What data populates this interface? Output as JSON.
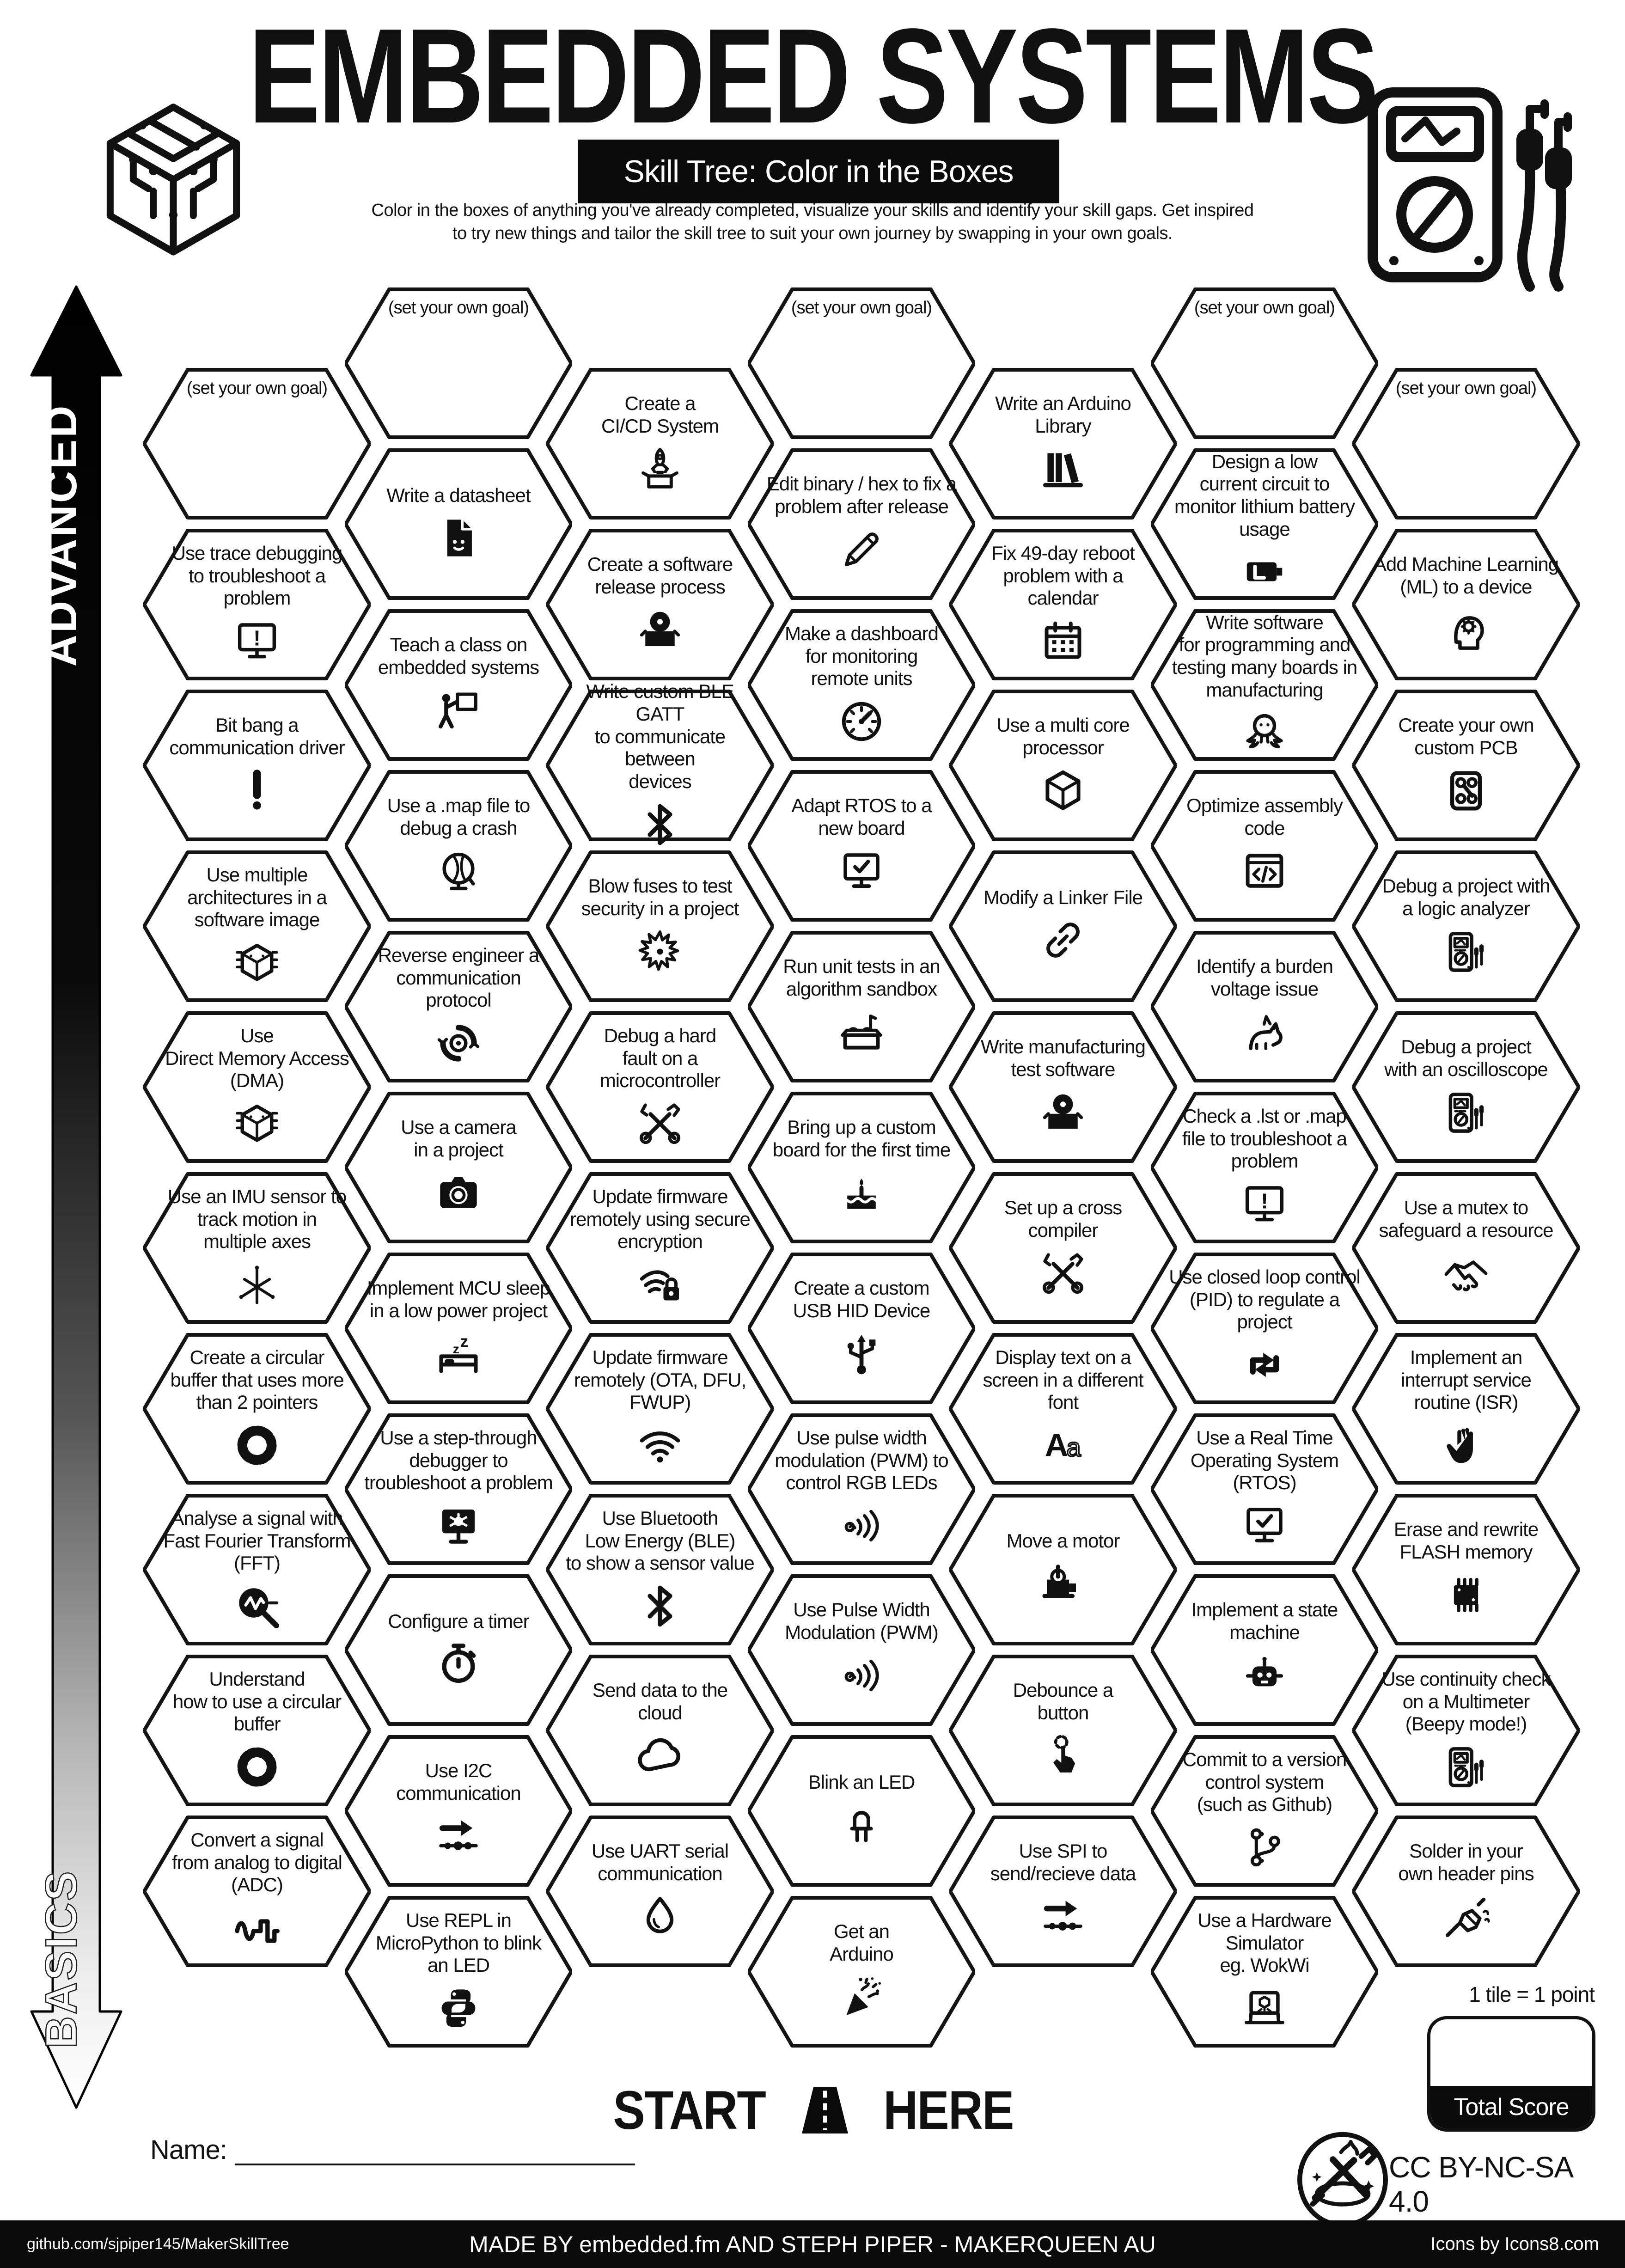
{
  "colors": {
    "ink": "#111111",
    "paper": "#ffffff",
    "bar": "#0b0b0b"
  },
  "header": {
    "title": "EMBEDDED SYSTEMS",
    "subtitle": "Skill Tree: Color in the Boxes",
    "description_line1": "Color in the boxes of anything you've already completed, visualize your skills and identify your skill gaps.  Get inspired",
    "description_line2": "to try new things and tailor the skill tree to suit your own journey by swapping in your own goals."
  },
  "axis": {
    "top_label": "ADVANCED",
    "bottom_label": "BASICS"
  },
  "goal_label": "(set your own goal)",
  "hexes": [
    {
      "col": 0,
      "row": 0,
      "goal": true,
      "label": "(set your own goal)",
      "icon": "none"
    },
    {
      "col": 0,
      "row": 1,
      "label": "Use trace debugging\nto troubleshoot a\nproblem",
      "icon": "monitor-exclamation"
    },
    {
      "col": 0,
      "row": 2,
      "label": "Bit bang a\ncommunication driver",
      "icon": "exclamation"
    },
    {
      "col": 0,
      "row": 3,
      "label": "Use multiple\narchitectures in a\nsoftware image",
      "icon": "circuit-cube"
    },
    {
      "col": 0,
      "row": 4,
      "label": "Use\nDirect Memory Access\n(DMA)",
      "icon": "memory-cube"
    },
    {
      "col": 0,
      "row": 5,
      "label": "Use an IMU sensor to\ntrack motion in\nmultiple axes",
      "icon": "axes-3d"
    },
    {
      "col": 0,
      "row": 6,
      "label": "Create a circular\nbuffer that uses more\nthan 2 pointers",
      "icon": "ring-buffer"
    },
    {
      "col": 0,
      "row": 7,
      "label": "Analyse a signal with\nFast Fourier Transform\n(FFT)",
      "icon": "magnifier-wave"
    },
    {
      "col": 0,
      "row": 8,
      "label": "Understand\nhow to use a circular\nbuffer",
      "icon": "ring-buffer"
    },
    {
      "col": 0,
      "row": 9,
      "label": "Convert a signal\nfrom analog to digital\n(ADC)",
      "icon": "adc-wave"
    },
    {
      "col": 1,
      "row": 0,
      "goal": true,
      "label": "(set your own goal)",
      "icon": "none"
    },
    {
      "col": 1,
      "row": 1,
      "label": "Write a datasheet",
      "icon": "datasheet-document"
    },
    {
      "col": 1,
      "row": 2,
      "label": "Teach a class on\nembedded systems",
      "icon": "presenter"
    },
    {
      "col": 1,
      "row": 3,
      "label": "Use a .map file to\ndebug a crash",
      "icon": "desk-globe"
    },
    {
      "col": 1,
      "row": 4,
      "label": "Reverse engineer a\ncommunication protocol",
      "icon": "gear-loop"
    },
    {
      "col": 1,
      "row": 5,
      "label": "Use a camera\nin a project",
      "icon": "camera"
    },
    {
      "col": 1,
      "row": 6,
      "label": "Implement MCU sleep\nin a low power project",
      "icon": "sleep-bed"
    },
    {
      "col": 1,
      "row": 7,
      "label": "Use a step-through\ndebugger to\ntroubleshoot a problem",
      "icon": "monitor-bug"
    },
    {
      "col": 1,
      "row": 8,
      "label": "Configure a timer",
      "icon": "stopwatch"
    },
    {
      "col": 1,
      "row": 9,
      "label": "Use I2C\ncommunication",
      "icon": "bus-arrow"
    },
    {
      "col": 1,
      "row": 10,
      "label": "Use REPL in\nMicroPython to blink\nan LED",
      "icon": "python"
    },
    {
      "col": 2,
      "row": 0,
      "label": "Create a\nCI/CD System",
      "icon": "rocket-box"
    },
    {
      "col": 2,
      "row": 1,
      "label": "Create a software\nrelease process",
      "icon": "box-cd"
    },
    {
      "col": 2,
      "row": 2,
      "label": "Write custom BLE GATT\nto communicate between\ndevices",
      "icon": "bluetooth"
    },
    {
      "col": 2,
      "row": 3,
      "label": "Blow fuses to test\nsecurity in a project",
      "icon": "explosion"
    },
    {
      "col": 2,
      "row": 4,
      "label": "Debug a hard\nfault on a\nmicrocontroller",
      "icon": "crossed-tools"
    },
    {
      "col": 2,
      "row": 5,
      "label": "Update firmware\nremotely using secure\nencryption",
      "icon": "wifi-lock"
    },
    {
      "col": 2,
      "row": 6,
      "label": "Update firmware\nremotely (OTA, DFU,\nFWUP)",
      "icon": "wifi"
    },
    {
      "col": 2,
      "row": 7,
      "label": "Use Bluetooth\nLow Energy (BLE)\nto show a sensor value",
      "icon": "bluetooth"
    },
    {
      "col": 2,
      "row": 8,
      "label": "Send data to the\ncloud",
      "icon": "cloud"
    },
    {
      "col": 2,
      "row": 9,
      "label": "Use UART serial\ncommunication",
      "icon": "water-drop"
    },
    {
      "col": 3,
      "row": 0,
      "goal": true,
      "label": "(set your own goal)",
      "icon": "none"
    },
    {
      "col": 3,
      "row": 1,
      "label": "Edit binary / hex to fix a\nproblem after release",
      "icon": "pencil"
    },
    {
      "col": 3,
      "row": 2,
      "label": "Make a dashboard\nfor monitoring\nremote units",
      "icon": "gauge"
    },
    {
      "col": 3,
      "row": 3,
      "label": "Adapt RTOS to a\nnew board",
      "icon": "monitor-check"
    },
    {
      "col": 3,
      "row": 4,
      "label": "Run unit tests in an\nalgorithm sandbox",
      "icon": "sandbox"
    },
    {
      "col": 3,
      "row": 5,
      "label": "Bring up a custom\nboard for the first time",
      "icon": "cake"
    },
    {
      "col": 3,
      "row": 6,
      "label": "Create a custom\nUSB HID Device",
      "icon": "usb"
    },
    {
      "col": 3,
      "row": 7,
      "label": "Use pulse width\nmodulation (PWM) to\ncontrol RGB LEDs",
      "icon": "pwm-waves"
    },
    {
      "col": 3,
      "row": 8,
      "label": "Use Pulse Width\nModulation (PWM)",
      "icon": "pwm-waves"
    },
    {
      "col": 3,
      "row": 9,
      "label": "Blink an LED",
      "icon": "led"
    },
    {
      "col": 3,
      "row": 10,
      "label": "Get an\nArduino",
      "icon": "party-popper"
    },
    {
      "col": 4,
      "row": 0,
      "label": "Write an Arduino\nLibrary",
      "icon": "bookshelf"
    },
    {
      "col": 4,
      "row": 1,
      "label": "Fix 49-day reboot\nproblem with a\ncalendar",
      "icon": "calendar"
    },
    {
      "col": 4,
      "row": 2,
      "label": "Use a multi core\nprocessor",
      "icon": "cube"
    },
    {
      "col": 4,
      "row": 3,
      "label": "Modify a Linker File",
      "icon": "chain-link"
    },
    {
      "col": 4,
      "row": 4,
      "label": "Write manufacturing\ntest software",
      "icon": "box-cd"
    },
    {
      "col": 4,
      "row": 5,
      "label": "Set up a cross\ncompiler",
      "icon": "crossed-tools"
    },
    {
      "col": 4,
      "row": 6,
      "label": "Display text on a\nscreen in a different\nfont",
      "icon": "font-aa"
    },
    {
      "col": 4,
      "row": 7,
      "label": "Move a motor",
      "icon": "motor"
    },
    {
      "col": 4,
      "row": 8,
      "label": "Debounce a\nbutton",
      "icon": "tap-finger"
    },
    {
      "col": 4,
      "row": 9,
      "label": "Use SPI to\nsend/recieve data",
      "icon": "bus-arrow"
    },
    {
      "col": 5,
      "row": 0,
      "goal": true,
      "label": "(set your own goal)",
      "icon": "none"
    },
    {
      "col": 5,
      "row": 1,
      "label": "Design a low\ncurrent circuit to\nmonitor lithium battery\nusage",
      "icon": "battery"
    },
    {
      "col": 5,
      "row": 2,
      "label": "Write software\nfor programming and\ntesting many boards in\nmanufacturing",
      "icon": "octopus"
    },
    {
      "col": 5,
      "row": 3,
      "label": "Optimize assembly\ncode",
      "icon": "code-window"
    },
    {
      "col": 5,
      "row": 4,
      "label": "Identify a burden\nvoltage issue",
      "icon": "donkey"
    },
    {
      "col": 5,
      "row": 5,
      "label": "Check a .lst or .map\nfile to troubleshoot a\nproblem",
      "icon": "monitor-exclamation"
    },
    {
      "col": 5,
      "row": 6,
      "label": "Use closed loop control\n(PID) to regulate a\nproject",
      "icon": "pid-arrows"
    },
    {
      "col": 5,
      "row": 7,
      "label": "Use a Real Time\nOperating System\n(RTOS)",
      "icon": "monitor-check"
    },
    {
      "col": 5,
      "row": 8,
      "label": "Implement a state\nmachine",
      "icon": "robot"
    },
    {
      "col": 5,
      "row": 9,
      "label": "Commit to a version\ncontrol system\n(such as Github)",
      "icon": "git-branch"
    },
    {
      "col": 5,
      "row": 10,
      "label": "Use a Hardware\nSimulator\neg. WokWi",
      "icon": "laptop-sim"
    },
    {
      "col": 6,
      "row": 0,
      "goal": true,
      "label": "(set your own goal)",
      "icon": "none"
    },
    {
      "col": 6,
      "row": 1,
      "label": "Add Machine Learning\n(ML) to a device",
      "icon": "brain-gear"
    },
    {
      "col": 6,
      "row": 2,
      "label": "Create your own\ncustom PCB",
      "icon": "pcb"
    },
    {
      "col": 6,
      "row": 3,
      "label": "Debug a project with\na logic analyzer",
      "icon": "multimeter"
    },
    {
      "col": 6,
      "row": 4,
      "label": "Debug a project\nwith an oscilloscope",
      "icon": "multimeter"
    },
    {
      "col": 6,
      "row": 5,
      "label": "Use a mutex to\nsafeguard a resource",
      "icon": "handshake"
    },
    {
      "col": 6,
      "row": 6,
      "label": "Implement an\ninterrupt service\nroutine (ISR)",
      "icon": "hand"
    },
    {
      "col": 6,
      "row": 7,
      "label": "Erase and rewrite\nFLASH memory",
      "icon": "chip"
    },
    {
      "col": 6,
      "row": 8,
      "label": "Use continuity check\non a Multimeter\n(Beepy mode!)",
      "icon": "multimeter"
    },
    {
      "col": 6,
      "row": 9,
      "label": "Solder in your\nown header pins",
      "icon": "soldering-iron"
    }
  ],
  "start": {
    "start_word": "START",
    "here_word": "HERE",
    "road_icon": "road-icon"
  },
  "name_label": "Name:",
  "score": {
    "tile_note": "1 tile = 1 point",
    "total_label": "Total Score"
  },
  "license": "CC BY-NC-SA 4.0",
  "footer": {
    "left": "github.com/sjpiper145/MakerSkillTree",
    "center": "MADE BY embedded.fm AND STEPH PIPER  -  MAKERQUEEN AU",
    "right": "Icons by Icons8.com"
  }
}
